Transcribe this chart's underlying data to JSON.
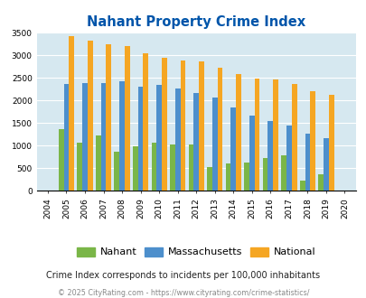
{
  "title": "Nahant Property Crime Index",
  "years": [
    "2004",
    "2005",
    "2006",
    "2007",
    "2008",
    "2009",
    "2010",
    "2011",
    "2012",
    "2013",
    "2014",
    "2015",
    "2016",
    "2017",
    "2018",
    "2019",
    "2020"
  ],
  "nahant": [
    0,
    1370,
    1060,
    1220,
    860,
    990,
    1060,
    1030,
    1030,
    530,
    600,
    620,
    730,
    790,
    220,
    360,
    0
  ],
  "massachusetts": [
    0,
    2370,
    2390,
    2390,
    2420,
    2300,
    2350,
    2260,
    2170,
    2060,
    1850,
    1670,
    1550,
    1440,
    1260,
    1170,
    0
  ],
  "national": [
    0,
    3420,
    3330,
    3250,
    3200,
    3040,
    2950,
    2890,
    2860,
    2720,
    2590,
    2490,
    2460,
    2360,
    2210,
    2120,
    0
  ],
  "nahant_color": "#7ab648",
  "mass_color": "#4d8fcc",
  "national_color": "#f5a623",
  "bg_color": "#d6e8f0",
  "title_color": "#0055aa",
  "ylabel_max": 3500,
  "yticks": [
    0,
    500,
    1000,
    1500,
    2000,
    2500,
    3000,
    3500
  ],
  "subtitle": "Crime Index corresponds to incidents per 100,000 inhabitants",
  "footer": "© 2025 CityRating.com - https://www.cityrating.com/crime-statistics/",
  "bar_width": 0.28,
  "grid_color": "#ffffff"
}
